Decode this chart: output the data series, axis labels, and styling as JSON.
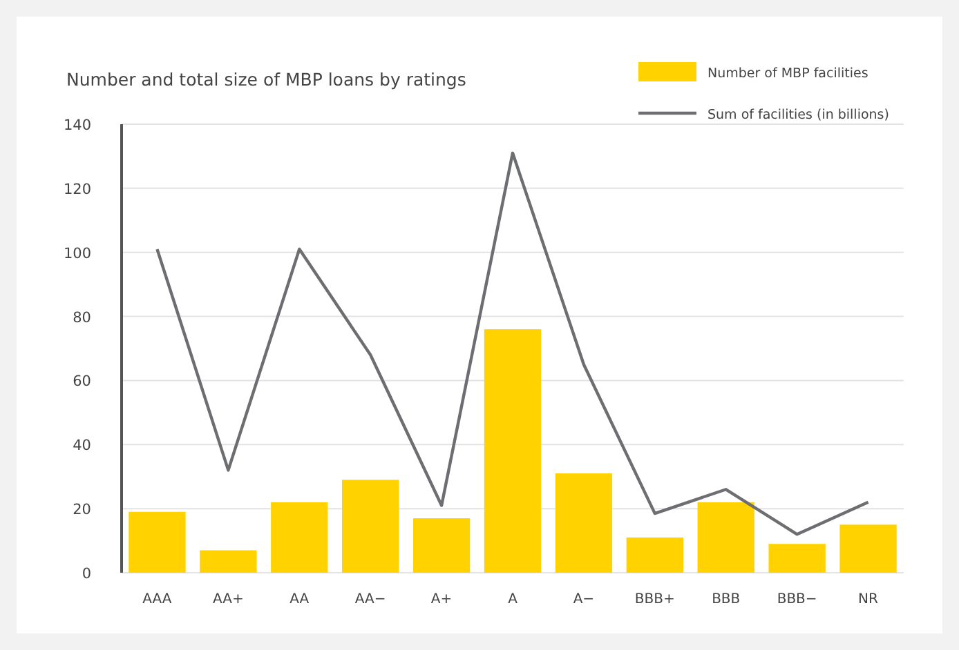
{
  "chart_data": {
    "type": "bar",
    "title": "Number and total size of MBP loans by ratings",
    "categories": [
      "AAA",
      "AA+",
      "AA",
      "AA−",
      "A+",
      "A",
      "A−",
      "BBB+",
      "BBB",
      "BBB−",
      "NR"
    ],
    "series": [
      {
        "name": "Number of MBP facilities",
        "color": "#ffd200",
        "values": [
          19,
          7,
          22,
          29,
          17,
          76,
          31,
          11,
          22,
          9,
          15
        ]
      },
      {
        "name": "Sum of facilities (in billions)",
        "type": "line",
        "color": "#6d6e71",
        "values": [
          101,
          32,
          101,
          68,
          21,
          131,
          65,
          18.5,
          26,
          12,
          22
        ]
      }
    ],
    "ylim": [
      0,
      140
    ],
    "yticks": [
      0,
      20,
      40,
      60,
      80,
      100,
      120,
      140
    ],
    "grid": "y",
    "legend": "top right",
    "marker": "none",
    "line_style": "solid"
  }
}
